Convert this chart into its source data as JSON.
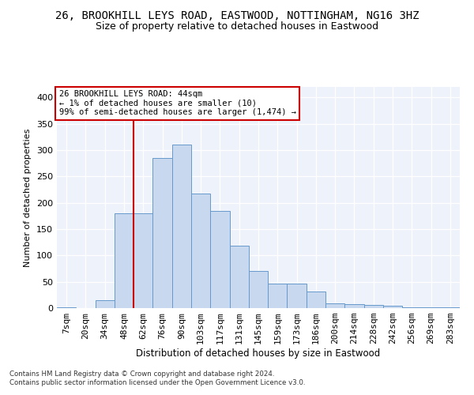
{
  "title": "26, BROOKHILL LEYS ROAD, EASTWOOD, NOTTINGHAM, NG16 3HZ",
  "subtitle": "Size of property relative to detached houses in Eastwood",
  "xlabel": "Distribution of detached houses by size in Eastwood",
  "ylabel": "Number of detached properties",
  "bin_labels": [
    "7sqm",
    "20sqm",
    "34sqm",
    "48sqm",
    "62sqm",
    "76sqm",
    "90sqm",
    "103sqm",
    "117sqm",
    "131sqm",
    "145sqm",
    "159sqm",
    "173sqm",
    "186sqm",
    "200sqm",
    "214sqm",
    "228sqm",
    "242sqm",
    "256sqm",
    "269sqm",
    "283sqm"
  ],
  "bar_heights": [
    2,
    0,
    15,
    180,
    180,
    285,
    310,
    218,
    185,
    118,
    70,
    46,
    46,
    31,
    9,
    7,
    6,
    4,
    2,
    1,
    2
  ],
  "bar_color": "#c8d8ee",
  "bar_edge_color": "#6699cc",
  "vline_x": 3.5,
  "vline_color": "#cc0000",
  "annotation_line1": "26 BROOKHILL LEYS ROAD: 44sqm",
  "annotation_line2": "← 1% of detached houses are smaller (10)",
  "annotation_line3": "99% of semi-detached houses are larger (1,474) →",
  "annotation_box_color": "#ffffff",
  "annotation_box_edge": "#cc0000",
  "footnote1": "Contains HM Land Registry data © Crown copyright and database right 2024.",
  "footnote2": "Contains public sector information licensed under the Open Government Licence v3.0.",
  "ylim": [
    0,
    420
  ],
  "yticks": [
    0,
    50,
    100,
    150,
    200,
    250,
    300,
    350,
    400
  ],
  "title_fontsize": 10,
  "subtitle_fontsize": 9,
  "background_color": "#eef2fa"
}
